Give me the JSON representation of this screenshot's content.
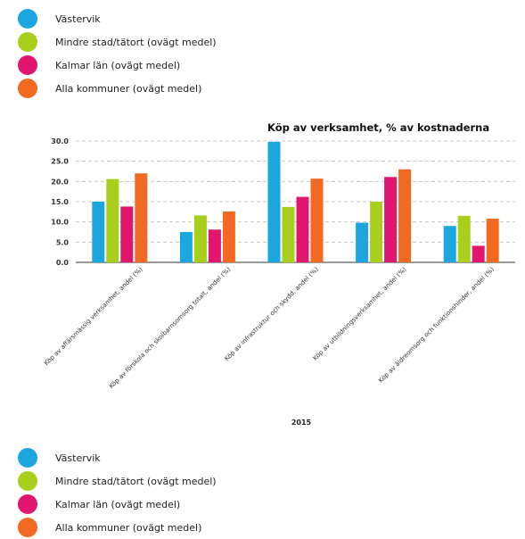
{
  "legend": [
    {
      "label": "Västervik",
      "color": "#1ba6e0"
    },
    {
      "label": "Mindre stad/tätort (ovägt medel)",
      "color": "#a8cf1c"
    },
    {
      "label": "Kalmar län (ovägt medel)",
      "color": "#e0166f"
    },
    {
      "label": "Alla kommuner (ovägt medel)",
      "color": "#f26a21"
    }
  ],
  "chart_data": {
    "type": "bar",
    "title": "Köp av verksamhet, % av kostnaderna",
    "xlabel": "2015",
    "ylabel": "",
    "ylim": [
      0,
      30
    ],
    "yticks": [
      "0.0",
      "5.0",
      "10.0",
      "15.0",
      "20.0",
      "25.0",
      "30.0"
    ],
    "grid": true,
    "categories": [
      "Köp av affärsmässig verksamhet, andel (%)",
      "Köp av förskola och skolbarnsomsorg totalt, andel (%)",
      "Köp av infrastruktur och skydd, andel (%)",
      "Köp av utbildningsverksamhet, andel (%)",
      "Köp av äldreomsorg och funktionshinder, andel (%)"
    ],
    "series": [
      {
        "name": "Västervik",
        "color": "#1ba6e0",
        "values": [
          15.0,
          7.5,
          29.8,
          9.8,
          9.0
        ]
      },
      {
        "name": "Mindre stad/tätort (ovägt medel)",
        "color": "#a8cf1c",
        "values": [
          20.6,
          11.6,
          13.7,
          15.0,
          11.5
        ]
      },
      {
        "name": "Kalmar län (ovägt medel)",
        "color": "#e0166f",
        "values": [
          13.8,
          8.1,
          16.2,
          21.1,
          4.1
        ]
      },
      {
        "name": "Alla kommuner (ovägt medel)",
        "color": "#f26a21",
        "values": [
          22.0,
          12.6,
          20.7,
          23.0,
          10.8
        ]
      }
    ]
  }
}
